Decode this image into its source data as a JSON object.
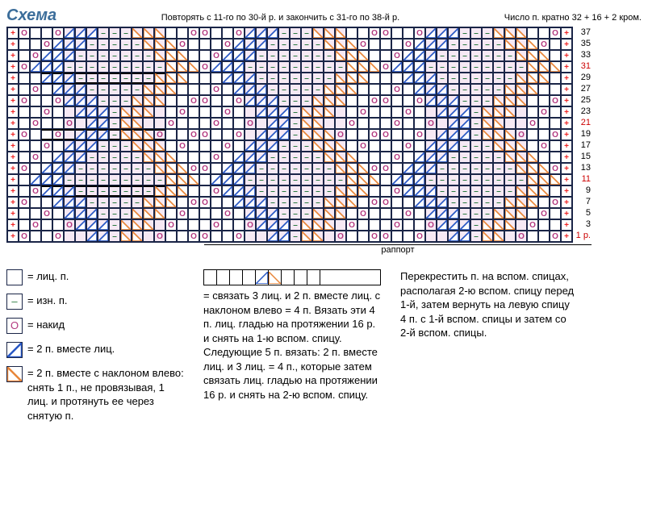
{
  "title": "Схема",
  "instruction_left": "Повторять с 11-го по 30-й р. и закончить с 31-го по 38-й р.",
  "instruction_right": "Число п. кратно 32 + 16 + 2 кром.",
  "rapport_label": "раппорт",
  "row_labels": [
    {
      "n": "37",
      "red": false
    },
    {
      "n": "35",
      "red": false
    },
    {
      "n": "33",
      "red": false
    },
    {
      "n": "31",
      "red": true
    },
    {
      "n": "29",
      "red": false
    },
    {
      "n": "27",
      "red": false
    },
    {
      "n": "25",
      "red": false
    },
    {
      "n": "23",
      "red": false
    },
    {
      "n": "21",
      "red": true
    },
    {
      "n": "19",
      "red": false
    },
    {
      "n": "17",
      "red": false
    },
    {
      "n": "15",
      "red": false
    },
    {
      "n": "13",
      "red": false
    },
    {
      "n": "11",
      "red": true
    },
    {
      "n": "9",
      "red": false
    },
    {
      "n": "7",
      "red": false
    },
    {
      "n": "5",
      "red": false
    },
    {
      "n": "3",
      "red": false
    },
    {
      "n": "1 р.",
      "red": true
    }
  ],
  "colors": {
    "grid": "#1a2547",
    "plus": "#e22",
    "circle": "#b3387f",
    "dash": "#2a7a3f",
    "blue_tri": "#2857c4",
    "orange_tri": "#e8863a",
    "bg_pink": "#f6e9f4"
  },
  "legend": {
    "items": [
      {
        "sym": "blank",
        "text": "= лиц. п."
      },
      {
        "sym": "dash",
        "text": "= изн. п."
      },
      {
        "sym": "circle",
        "text": "= накид"
      },
      {
        "sym": "blue",
        "text": "= 2 п. вместе лиц."
      },
      {
        "sym": "orange",
        "text": "= 2 п. вместе с наклоном влево: снять 1 п., не провязывая, 1 лиц. и протянуть ее через снятую п."
      }
    ],
    "strip_text": "= связать 3 лиц. и 2 п. вместе лиц. с наклоном влево = 4 п. Вязать эти 4 п. лиц. гладью на протяжении 16 р. и снять на 1-ю вспом. спицу. Следующие 5 п. вязать: 2 п. вместе лиц. и 3 лиц. = 4 п., которые затем связать лиц. гладью на протяжении 16 р. и снять на 2-ю вспом. спицу.",
    "col3_text": "Перекрестить п. на вспом. спицах, располагая 2-ю вспом. спицу перед 1-й, затем вернуть на левую спицу 4 п. с 1-й вспом. спицы и затем со 2-й вспом. спицы."
  },
  "chart": {
    "cols": 50,
    "rows": 19,
    "cell_size": 14,
    "pattern_note": "Knitting chart: edge cells '+', diamond lace pattern with O/dash/triangles, cable rows marked heavy border"
  }
}
